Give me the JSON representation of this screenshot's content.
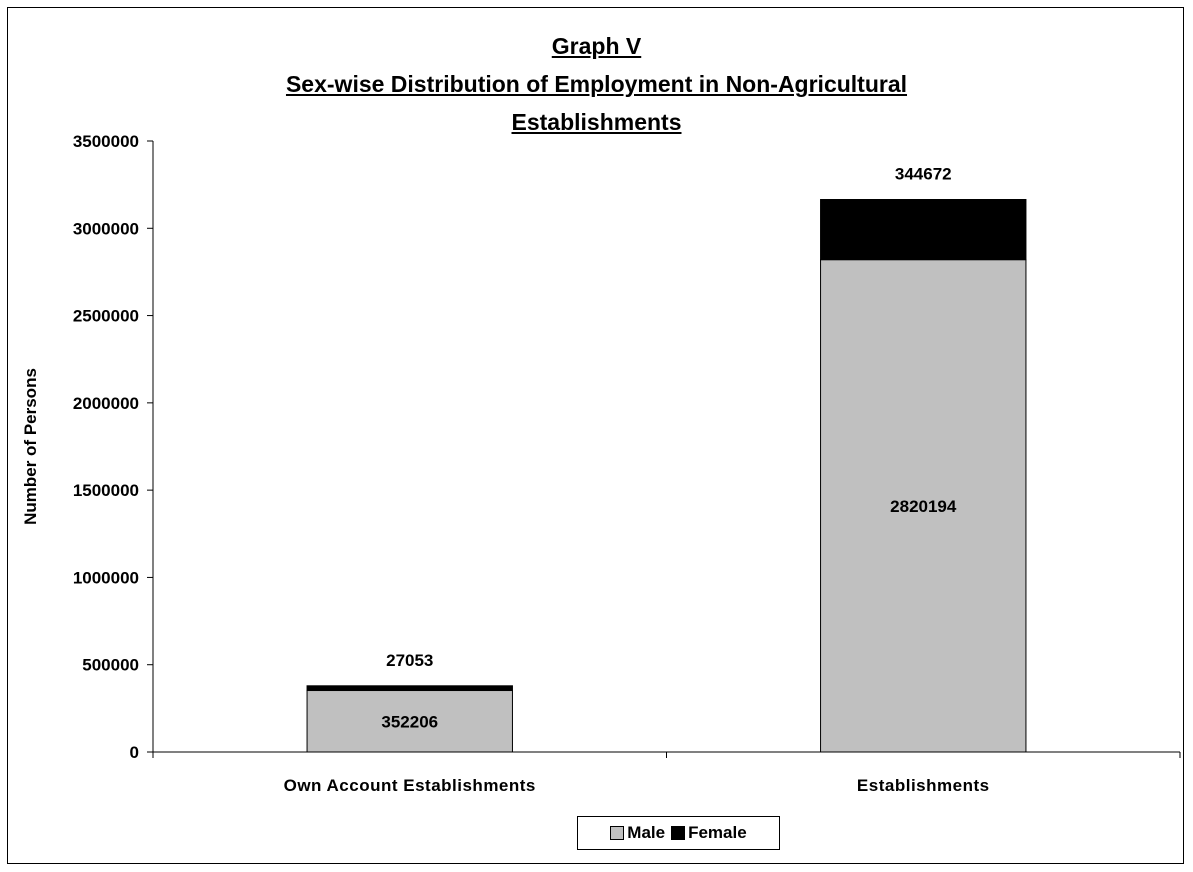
{
  "chart_data": {
    "type": "bar",
    "stacked": true,
    "title_lines": [
      "Graph V",
      "Sex-wise Distribution of Employment in Non-Agricultural",
      "Establishments"
    ],
    "xlabel": "",
    "ylabel": "Number of Persons",
    "ylim": [
      0,
      3500000
    ],
    "yticks": [
      0,
      500000,
      1000000,
      1500000,
      2000000,
      2500000,
      3000000,
      3500000
    ],
    "ytick_labels": [
      "0",
      "500000",
      "1000000",
      "1500000",
      "2000000",
      "2500000",
      "3000000",
      "3500000"
    ],
    "categories": [
      "Own Account Establishments",
      "Establishments"
    ],
    "series": [
      {
        "name": "Male",
        "values": [
          352206,
          2820194
        ],
        "color": "#c0c0c0",
        "labels": [
          "352206",
          "2820194"
        ]
      },
      {
        "name": "Female",
        "values": [
          27053,
          344672
        ],
        "color": "#000000",
        "labels": [
          "27053",
          "344672"
        ]
      }
    ],
    "grid": false,
    "legend_position": "bottom"
  }
}
